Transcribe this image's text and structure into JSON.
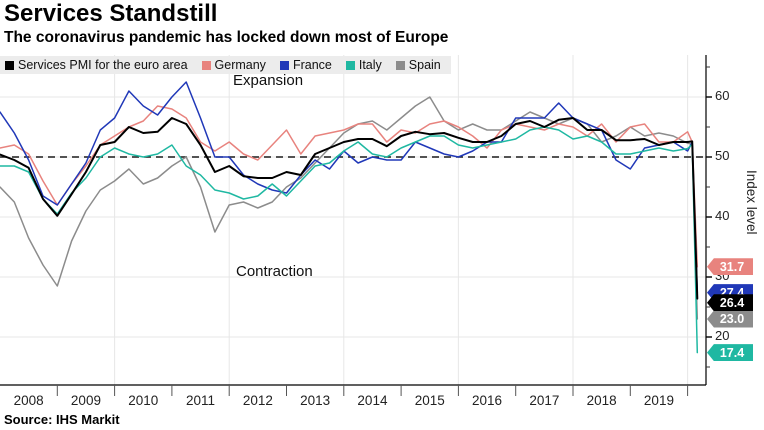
{
  "header": {
    "title": "Services Standstill",
    "subtitle": "The coronavirus pandemic has locked down most of Europe"
  },
  "source": "Source: IHS Markit",
  "chart_data": {
    "type": "line",
    "title": "Services Standstill",
    "subtitle": "The coronavirus pandemic has locked down most of Europe",
    "ylabel": "Index level",
    "ylim": [
      12,
      67
    ],
    "xlim": [
      2008,
      2020.3
    ],
    "y_ticks": [
      60,
      50,
      40,
      30,
      20
    ],
    "y_minor_ticks": [
      65,
      55,
      45,
      35,
      25,
      15
    ],
    "x_year_labels": [
      "2008",
      "2009",
      "2010",
      "2011",
      "2012",
      "2013",
      "2014",
      "2015",
      "2016",
      "2017",
      "2018",
      "2019"
    ],
    "grid_years": [
      2010,
      2012,
      2014,
      2016,
      2018,
      2020
    ],
    "grid": true,
    "legend_position": "top",
    "threshold": {
      "value": 50,
      "style": "dashed"
    },
    "annotations": [
      {
        "text": "Expansion",
        "position": "above-threshold"
      },
      {
        "text": "Contraction",
        "position": "below-threshold"
      }
    ],
    "x": [
      2008.0,
      2008.25,
      2008.5,
      2008.75,
      2009.0,
      2009.25,
      2009.5,
      2009.75,
      2010.0,
      2010.25,
      2010.5,
      2010.75,
      2011.0,
      2011.25,
      2011.5,
      2011.75,
      2012.0,
      2012.25,
      2012.5,
      2012.75,
      2013.0,
      2013.25,
      2013.5,
      2013.75,
      2014.0,
      2014.25,
      2014.5,
      2014.75,
      2015.0,
      2015.25,
      2015.5,
      2015.75,
      2016.0,
      2016.25,
      2016.5,
      2016.75,
      2017.0,
      2017.25,
      2017.5,
      2017.75,
      2018.0,
      2018.25,
      2018.5,
      2018.75,
      2019.0,
      2019.25,
      2019.5,
      2019.75,
      2020.0,
      2020.08,
      2020.17
    ],
    "series": [
      {
        "name": "Services PMI for the euro area",
        "color": "#000000",
        "end_label": "26.4",
        "values": [
          50.4,
          49.5,
          48.2,
          43.0,
          40.2,
          43.8,
          47.5,
          52.0,
          52.5,
          55.0,
          54.0,
          54.2,
          56.5,
          55.5,
          52.0,
          47.5,
          48.5,
          46.8,
          46.5,
          46.5,
          47.5,
          47.0,
          50.5,
          51.5,
          52.5,
          53.0,
          53.0,
          51.8,
          53.5,
          54.2,
          53.8,
          54.0,
          53.2,
          52.5,
          52.5,
          53.5,
          55.5,
          56.0,
          55.0,
          56.2,
          56.5,
          54.5,
          54.5,
          52.8,
          52.8,
          53.0,
          52.0,
          52.5,
          52.5,
          52.6,
          26.4
        ]
      },
      {
        "name": "Germany",
        "color": "#e8837e",
        "end_label": "31.7",
        "values": [
          51.5,
          52.0,
          50.5,
          46.0,
          42.0,
          45.5,
          48.5,
          52.0,
          53.5,
          55.0,
          56.0,
          58.5,
          58.0,
          56.5,
          52.5,
          51.0,
          52.5,
          50.5,
          49.5,
          52.0,
          54.5,
          50.5,
          53.5,
          54.0,
          54.5,
          55.5,
          55.5,
          52.5,
          54.5,
          54.0,
          55.5,
          56.0,
          55.0,
          53.5,
          51.5,
          54.5,
          55.5,
          55.0,
          54.5,
          55.5,
          55.0,
          53.5,
          55.5,
          52.5,
          55.0,
          55.5,
          52.5,
          52.5,
          54.2,
          52.5,
          31.7
        ]
      },
      {
        "name": "France",
        "color": "#2038b8",
        "end_label": "27.4",
        "values": [
          57.5,
          54.0,
          49.5,
          43.5,
          42.0,
          45.5,
          49.0,
          54.5,
          56.5,
          61.0,
          58.5,
          57.0,
          60.0,
          62.5,
          56.5,
          50.0,
          50.0,
          47.0,
          45.5,
          44.5,
          44.0,
          47.0,
          49.5,
          48.0,
          51.0,
          49.0,
          50.0,
          49.5,
          49.5,
          52.5,
          51.5,
          50.5,
          50.0,
          51.0,
          52.5,
          52.5,
          56.5,
          56.5,
          56.5,
          59.0,
          56.5,
          55.5,
          54.5,
          49.5,
          48.0,
          51.5,
          52.0,
          52.5,
          51.0,
          52.5,
          27.4
        ]
      },
      {
        "name": "Italy",
        "color": "#1fb8a2",
        "end_label": "17.4",
        "values": [
          48.5,
          48.5,
          47.5,
          43.0,
          40.5,
          44.0,
          46.5,
          50.0,
          51.5,
          50.5,
          50.0,
          50.5,
          52.0,
          48.5,
          47.0,
          44.5,
          44.0,
          43.0,
          43.5,
          45.5,
          43.5,
          46.0,
          48.5,
          49.0,
          51.0,
          52.5,
          50.5,
          50.0,
          51.5,
          52.5,
          53.5,
          53.5,
          52.0,
          51.5,
          52.0,
          52.5,
          53.0,
          54.5,
          55.0,
          54.5,
          53.0,
          53.5,
          52.5,
          50.5,
          50.5,
          51.0,
          51.5,
          51.0,
          51.4,
          52.1,
          17.4
        ]
      },
      {
        "name": "Spain",
        "color": "#8c8c8c",
        "end_label": "23.0",
        "values": [
          45.0,
          42.5,
          36.5,
          32.0,
          28.5,
          36.0,
          41.0,
          44.5,
          46.0,
          48.0,
          45.5,
          46.5,
          48.5,
          50.0,
          45.0,
          37.5,
          42.0,
          42.5,
          41.5,
          42.5,
          45.0,
          46.5,
          49.0,
          51.5,
          54.0,
          55.5,
          56.0,
          54.5,
          56.5,
          58.5,
          60.0,
          56.0,
          54.5,
          55.5,
          54.5,
          54.5,
          56.0,
          57.5,
          56.5,
          55.5,
          56.5,
          55.5,
          52.5,
          53.5,
          55.0,
          53.5,
          54.0,
          53.5,
          52.3,
          52.1,
          23.0
        ]
      }
    ]
  }
}
